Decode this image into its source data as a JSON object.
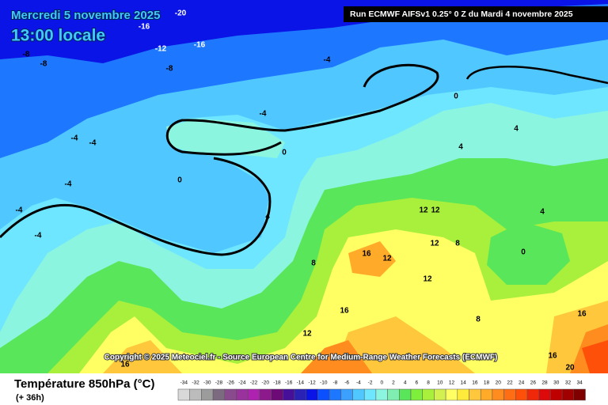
{
  "header": {
    "date": "Mercredi 5 novembre 2025",
    "time": "13:00 locale",
    "run": "Run ECMWF AIFSv1 0.25° 0 Z du Mardi 4 novembre 2025"
  },
  "copyright": "Copyright © 2025 Meteociel.fr - Source European Centre for Medium-Range Weather Forecasts (ECMWF)",
  "contour_labels": [
    -20,
    -16,
    -12,
    -16,
    -8,
    -8,
    -8,
    -4,
    -4,
    -4,
    -4,
    -4,
    -4,
    -4,
    0,
    0,
    0,
    0,
    4,
    4,
    4,
    4,
    8,
    8,
    8,
    12,
    12,
    12,
    12,
    12,
    12,
    16,
    16,
    16,
    16,
    16,
    20
  ],
  "legend": {
    "title": "Température 850hPa (°C)",
    "lead": "(+ 36h)",
    "ticks": [
      -34,
      -32,
      -30,
      -28,
      -26,
      -24,
      -22,
      -20,
      -18,
      -16,
      -14,
      -12,
      -10,
      -8,
      -6,
      -4,
      -2,
      0,
      2,
      4,
      6,
      8,
      10,
      12,
      14,
      16,
      18,
      20,
      22,
      24,
      26,
      28,
      30,
      32,
      34
    ],
    "colors": [
      "#d9d9d9",
      "#bcbcbc",
      "#9c9c9c",
      "#7c6a80",
      "#8a4a8e",
      "#9a329e",
      "#ae22b0",
      "#8c1a8c",
      "#6e0a78",
      "#46109a",
      "#2a22b4",
      "#0a14e6",
      "#0a50ff",
      "#1e78ff",
      "#3ca0ff",
      "#50c8ff",
      "#6ee6ff",
      "#8cf5e0",
      "#80eeb0",
      "#5ae65a",
      "#7ef03c",
      "#a8f03c",
      "#d2f050",
      "#ffff64",
      "#ffeb3c",
      "#ffc83c",
      "#ffaa28",
      "#ff8c1e",
      "#ff6e14",
      "#ff500a",
      "#f0280a",
      "#dc0a0a",
      "#be0000",
      "#a00000",
      "#800000"
    ]
  }
}
